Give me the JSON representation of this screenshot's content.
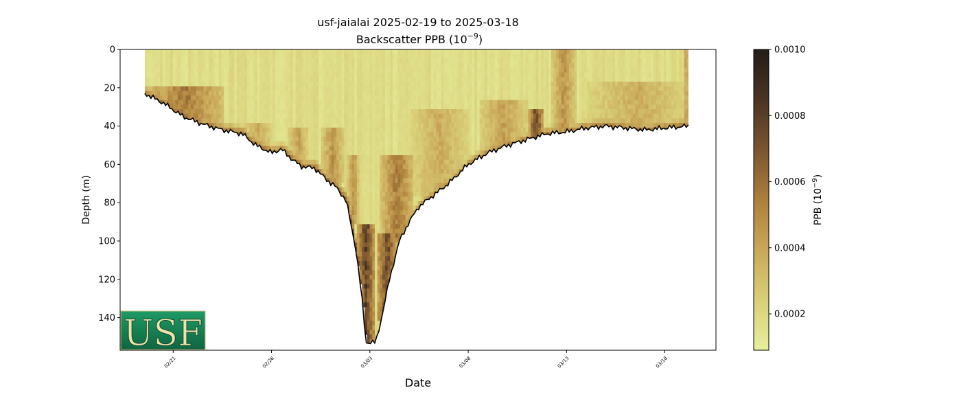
{
  "chart_data": {
    "type": "heatmap",
    "title": "usf-jaialai 2025-02-19 to 2025-03-18",
    "subtitle": "Backscatter PPB (10",
    "subtitle_sup": "−9",
    "subtitle_end": ")",
    "xlabel": "Date",
    "ylabel": "Depth (m)",
    "colorbar_label": "PPB (10",
    "colorbar_label_sup": "−9",
    "colorbar_label_end": ")",
    "xlim_days": [
      -2.7,
      27.6
    ],
    "x_ticks": [
      {
        "day": 0,
        "label": "02/21"
      },
      {
        "day": 5,
        "label": "02/26"
      },
      {
        "day": 10,
        "label": "03/03"
      },
      {
        "day": 15,
        "label": "03/08"
      },
      {
        "day": 20,
        "label": "03/13"
      },
      {
        "day": 25,
        "label": "03/18"
      }
    ],
    "ylim": [
      157,
      0
    ],
    "y_ticks": [
      0,
      20,
      40,
      60,
      80,
      100,
      120,
      140
    ],
    "colorbar": {
      "range": [
        9e-05,
        0.001
      ],
      "ticks": [
        {
          "value": 0.0002,
          "label": "0.0002"
        },
        {
          "value": 0.0004,
          "label": "0.0004"
        },
        {
          "value": 0.0006,
          "label": "0.0006"
        },
        {
          "value": 0.0008,
          "label": "0.0008"
        },
        {
          "value": 0.001,
          "label": "0.0010"
        }
      ],
      "colors": [
        "#e6ef9c",
        "#d9cf79",
        "#c9a85a",
        "#ad7f3c",
        "#7a5530",
        "#4a3424",
        "#231d18"
      ]
    },
    "max_depth_profile": [
      {
        "day": -1.45,
        "depth": 23
      },
      {
        "day": -0.5,
        "depth": 28
      },
      {
        "day": 0.5,
        "depth": 35
      },
      {
        "day": 1.5,
        "depth": 39
      },
      {
        "day": 2.5,
        "depth": 42
      },
      {
        "day": 3.5,
        "depth": 44
      },
      {
        "day": 4.2,
        "depth": 50
      },
      {
        "day": 5.0,
        "depth": 54
      },
      {
        "day": 5.5,
        "depth": 52
      },
      {
        "day": 6.0,
        "depth": 57
      },
      {
        "day": 6.5,
        "depth": 61
      },
      {
        "day": 7.2,
        "depth": 62
      },
      {
        "day": 7.8,
        "depth": 68
      },
      {
        "day": 8.3,
        "depth": 72
      },
      {
        "day": 8.8,
        "depth": 79
      },
      {
        "day": 9.3,
        "depth": 105
      },
      {
        "day": 9.6,
        "depth": 130
      },
      {
        "day": 9.8,
        "depth": 153
      },
      {
        "day": 10.3,
        "depth": 153
      },
      {
        "day": 10.6,
        "depth": 140
      },
      {
        "day": 11.0,
        "depth": 120
      },
      {
        "day": 11.5,
        "depth": 100
      },
      {
        "day": 12.0,
        "depth": 90
      },
      {
        "day": 12.5,
        "depth": 82
      },
      {
        "day": 13.0,
        "depth": 78
      },
      {
        "day": 14.0,
        "depth": 70
      },
      {
        "day": 15.0,
        "depth": 60
      },
      {
        "day": 16.0,
        "depth": 54
      },
      {
        "day": 17.0,
        "depth": 50
      },
      {
        "day": 18.0,
        "depth": 47
      },
      {
        "day": 19.0,
        "depth": 44
      },
      {
        "day": 20.0,
        "depth": 43
      },
      {
        "day": 21.0,
        "depth": 41
      },
      {
        "day": 22.0,
        "depth": 40
      },
      {
        "day": 23.0,
        "depth": 41
      },
      {
        "day": 24.0,
        "depth": 42
      },
      {
        "day": 25.0,
        "depth": 41
      },
      {
        "day": 26.2,
        "depth": 40
      }
    ],
    "high_backscatter_regions": [
      {
        "day_start": 9.3,
        "day_end": 10.2,
        "depth_top": 90,
        "depth_bottom": 153,
        "level": 0.00085
      },
      {
        "day_start": 10.3,
        "day_end": 11.3,
        "depth_top": 95,
        "depth_bottom": 140,
        "level": 0.0008
      },
      {
        "day_start": 10.5,
        "day_end": 12.2,
        "depth_top": 55,
        "depth_bottom": 100,
        "level": 0.0006
      },
      {
        "day_start": 8.8,
        "day_end": 9.4,
        "depth_top": 55,
        "depth_bottom": 90,
        "level": 0.0005
      },
      {
        "day_start": 7.5,
        "day_end": 8.6,
        "depth_top": 40,
        "depth_bottom": 68,
        "level": 0.0005
      },
      {
        "day_start": 5.8,
        "day_end": 6.8,
        "depth_top": 40,
        "depth_bottom": 58,
        "level": 0.00045
      },
      {
        "day_start": 3.5,
        "day_end": 5.0,
        "depth_top": 38,
        "depth_bottom": 52,
        "level": 0.0004
      },
      {
        "day_start": -1.45,
        "day_end": 2.5,
        "depth_top": 18,
        "depth_bottom": 42,
        "level": 0.0006
      },
      {
        "day_start": 12.0,
        "day_end": 15.0,
        "depth_top": 30,
        "depth_bottom": 75,
        "level": 0.0004
      },
      {
        "day_start": 15.5,
        "day_end": 18.0,
        "depth_top": 25,
        "depth_bottom": 52,
        "level": 0.00045
      },
      {
        "day_start": 18.0,
        "day_end": 18.8,
        "depth_top": 30,
        "depth_bottom": 46,
        "level": 0.0008
      },
      {
        "day_start": 19.2,
        "day_end": 20.4,
        "depth_top": 0,
        "depth_bottom": 44,
        "level": 0.0005
      },
      {
        "day_start": 21.0,
        "day_end": 26.2,
        "depth_top": 15,
        "depth_bottom": 41,
        "level": 0.0004
      },
      {
        "day_start": 25.9,
        "day_end": 26.2,
        "depth_top": 0,
        "depth_bottom": 40,
        "level": 0.0005
      }
    ],
    "logo_text": "USF",
    "logo_colors": {
      "background": "#157a4f",
      "text": "#efe3a8"
    }
  }
}
